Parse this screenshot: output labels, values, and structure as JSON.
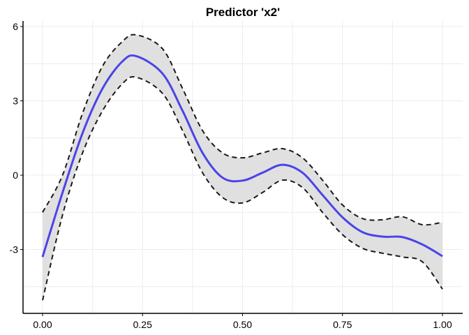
{
  "chart_data": {
    "type": "line",
    "title": "Predictor 'x2'",
    "xlabel": "",
    "ylabel": "",
    "xlim": [
      -0.05,
      1.05
    ],
    "ylim": [
      -5.6,
      6.2
    ],
    "xticks": [
      0,
      0.25,
      0.5,
      0.75,
      1
    ],
    "xtick_labels": [
      "0.00",
      "0.25",
      "0.50",
      "0.75",
      "1.00"
    ],
    "yticks": [
      -3,
      0,
      3,
      6
    ],
    "ytick_labels": [
      "-3",
      "0",
      "3",
      "6"
    ],
    "grid": true,
    "x": [
      0,
      0.05,
      0.1,
      0.15,
      0.2,
      0.235,
      0.3,
      0.35,
      0.4,
      0.45,
      0.5,
      0.55,
      0.6,
      0.65,
      0.7,
      0.75,
      0.8,
      0.85,
      0.9,
      0.95,
      1.0
    ],
    "series": [
      {
        "name": "fit",
        "color": "#4B44E8",
        "style": "solid",
        "values": [
          -3.3,
          -0.7,
          1.7,
          3.5,
          4.6,
          4.8,
          4.1,
          2.6,
          0.9,
          -0.1,
          -0.22,
          0.1,
          0.42,
          0.1,
          -0.8,
          -1.7,
          -2.3,
          -2.48,
          -2.5,
          -2.8,
          -3.27
        ]
      },
      {
        "name": "upper",
        "color": "#000000",
        "style": "dashed",
        "values": [
          -1.5,
          0.0,
          2.5,
          4.4,
          5.4,
          5.66,
          5.1,
          3.5,
          1.8,
          0.9,
          0.7,
          0.9,
          1.07,
          0.7,
          -0.2,
          -1.2,
          -1.75,
          -1.8,
          -1.68,
          -2.0,
          -1.9
        ]
      },
      {
        "name": "lower",
        "color": "#000000",
        "style": "dashed",
        "values": [
          -5.05,
          -1.6,
          0.9,
          2.6,
          3.7,
          3.95,
          3.3,
          1.8,
          0.1,
          -0.9,
          -1.12,
          -0.7,
          -0.2,
          -0.5,
          -1.5,
          -2.4,
          -2.95,
          -3.15,
          -3.3,
          -3.5,
          -4.6
        ]
      }
    ],
    "band_color": "#E0E0E0"
  }
}
